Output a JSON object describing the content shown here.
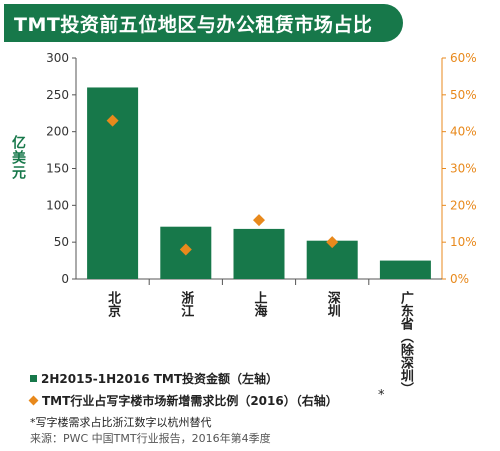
{
  "title": "TMT投资前五位地区与办公租赁市场占比",
  "chart_data": {
    "type": "bar",
    "title": "TMT投资前五位地区与办公租赁市场占比",
    "ylabel": "亿美元",
    "categories": [
      "北京",
      "浙江",
      "上海",
      "深圳",
      "广东省（除深圳）"
    ],
    "ylim": [
      0,
      300
    ],
    "y_ticks": [
      "0",
      "50",
      "100",
      "150",
      "200",
      "250",
      "300"
    ],
    "y2lim": [
      0,
      60
    ],
    "y2_ticks": [
      "0%",
      "10%",
      "20%",
      "30%",
      "40%",
      "50%",
      "60%"
    ],
    "grid": false,
    "series": [
      {
        "name": "2H2015-1H2016 TMT投资金额（左轴）",
        "type": "bar",
        "axis": "left",
        "color": "#17784a",
        "values": [
          260,
          71,
          68,
          52,
          25
        ]
      },
      {
        "name": "TMT行业占写字楼市场新增需求比例（2016）（右轴）",
        "type": "scatter",
        "marker": "diamond",
        "axis": "right",
        "color": "#e8891c",
        "values": [
          43,
          8,
          16,
          10,
          null
        ]
      }
    ]
  },
  "legend": {
    "bar_label": "2H2015-1H2016 TMT投资金额（左轴）",
    "diamond_label": "TMT行业占写字楼市场新增需求比例（2016）（右轴）",
    "asterisk": "*"
  },
  "footnote": "*写字楼需求占比浙江数字以杭州替代",
  "source": "来源：PWC 中国TMT行业报告，2016年第4季度",
  "colors": {
    "title_bg": "#17784a",
    "bar": "#17784a",
    "diamond": "#e8891c",
    "right_axis": "#e8891c"
  }
}
